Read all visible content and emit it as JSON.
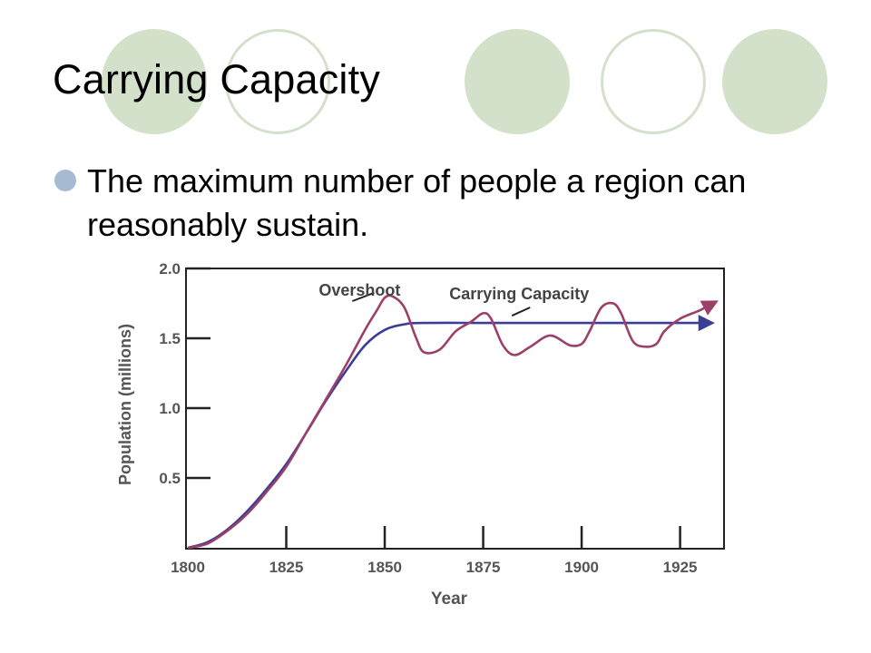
{
  "slide": {
    "title": "Carrying Capacity",
    "bullet": "The maximum number of people a region can reasonably sustain."
  },
  "colors": {
    "decor_circle": "#d3e1cb",
    "bullet_dot": "#a6bad1",
    "actual_population_line": "#9c3f6b",
    "carrying_capacity_line": "#3a3f93"
  },
  "chart_data": {
    "type": "line",
    "xlabel": "Year",
    "ylabel": "Population (millions)",
    "xlim": [
      1800,
      1935
    ],
    "ylim": [
      0,
      2.0
    ],
    "x_ticks": [
      1800,
      1825,
      1850,
      1875,
      1900,
      1925
    ],
    "y_ticks": [
      0.5,
      1.0,
      1.5,
      2.0
    ],
    "y_tick_labels": [
      "0.5",
      "1.0",
      "1.5",
      "2.0"
    ],
    "series": [
      {
        "role": "actual population (overshoot and oscillation)",
        "x": [
          1800,
          1805,
          1810,
          1815,
          1820,
          1825,
          1830,
          1835,
          1840,
          1845,
          1848,
          1850,
          1852,
          1855,
          1858,
          1860,
          1864,
          1868,
          1872,
          1875,
          1877,
          1880,
          1883,
          1887,
          1892,
          1897,
          1900,
          1902,
          1905,
          1908,
          1910,
          1913,
          1916,
          1919,
          1921,
          1925,
          1930,
          1934
        ],
        "values": [
          0.0,
          0.03,
          0.12,
          0.24,
          0.4,
          0.58,
          0.82,
          1.06,
          1.3,
          1.56,
          1.7,
          1.79,
          1.8,
          1.72,
          1.5,
          1.4,
          1.42,
          1.55,
          1.62,
          1.68,
          1.64,
          1.45,
          1.38,
          1.44,
          1.52,
          1.45,
          1.46,
          1.55,
          1.72,
          1.75,
          1.68,
          1.48,
          1.44,
          1.46,
          1.55,
          1.64,
          1.7,
          1.76
        ]
      },
      {
        "role": "carrying capacity",
        "x": [
          1800,
          1805,
          1810,
          1815,
          1820,
          1825,
          1830,
          1835,
          1840,
          1845,
          1850,
          1855,
          1860,
          1880,
          1900,
          1920,
          1933
        ],
        "values": [
          0.0,
          0.04,
          0.13,
          0.26,
          0.42,
          0.6,
          0.82,
          1.05,
          1.26,
          1.45,
          1.56,
          1.6,
          1.61,
          1.61,
          1.61,
          1.61,
          1.61
        ]
      }
    ],
    "annotations": [
      {
        "text": "Overshoot",
        "x": 1851,
        "y": 1.8
      },
      {
        "text": "Carrying Capacity",
        "x": 1880,
        "y": 1.61
      }
    ]
  }
}
